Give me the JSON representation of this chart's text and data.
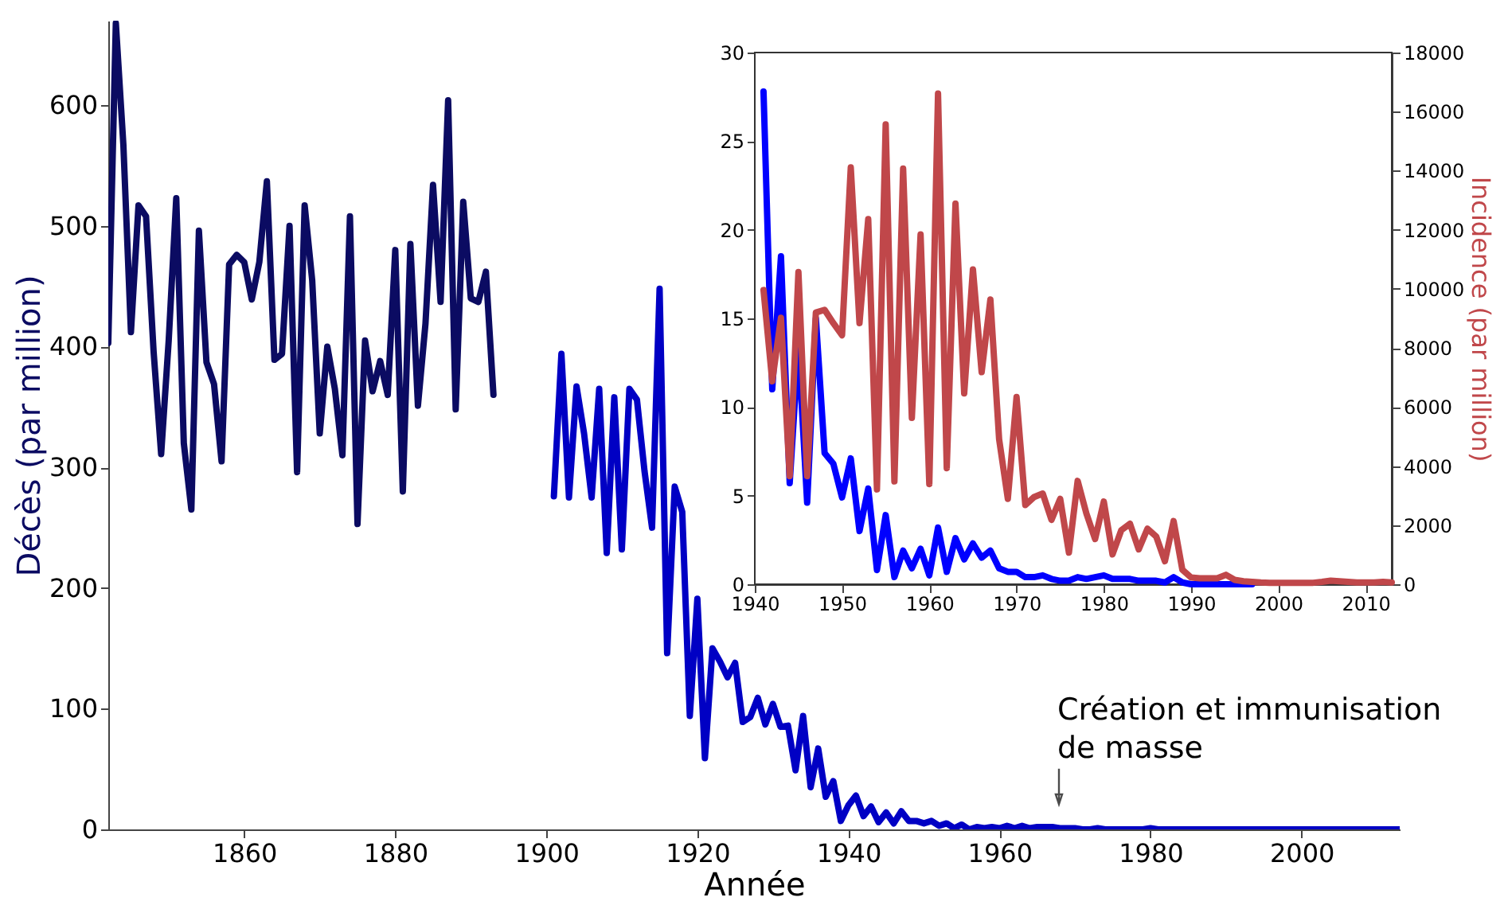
{
  "chart_data": [
    {
      "type": "line",
      "xlabel": "Année",
      "ylabel": "Décès (par million)",
      "xlim": [
        1842,
        2013
      ],
      "xticks": [
        1860,
        1880,
        1900,
        1920,
        1940,
        1960,
        1980,
        2000
      ],
      "ylim": [
        0,
        670
      ],
      "yticks": [
        0,
        100,
        200,
        300,
        400,
        500,
        600
      ],
      "grid": false,
      "annotations": [
        "Création et immunisation\nde masse"
      ],
      "series": [
        {
          "color": "#0b0b62",
          "x": [
            1842,
            1843,
            1844,
            1845,
            1846,
            1847,
            1848,
            1849,
            1850,
            1851,
            1852,
            1853,
            1854,
            1855,
            1856,
            1857,
            1858,
            1859,
            1860,
            1861,
            1862,
            1863,
            1864,
            1865,
            1866,
            1867,
            1868,
            1869,
            1870,
            1871,
            1872,
            1873,
            1874,
            1875,
            1876,
            1877,
            1878,
            1879,
            1880,
            1881,
            1882,
            1883,
            1884,
            1885,
            1886,
            1887,
            1888,
            1889,
            1890,
            1891,
            1892,
            1893
          ],
          "values": [
            403,
            668,
            567,
            412,
            517,
            508,
            396,
            311,
            405,
            523,
            320,
            265,
            496,
            387,
            369,
            305,
            468,
            476,
            470,
            439,
            470,
            537,
            389,
            394,
            500,
            296,
            517,
            455,
            328,
            400,
            365,
            310,
            508,
            253,
            405,
            363,
            388,
            360,
            480,
            280,
            485,
            351,
            419,
            534,
            437,
            604,
            348,
            520,
            440,
            437,
            462,
            360
          ]
        },
        {
          "color": "#0000c4",
          "x": [
            1901,
            1902,
            1903,
            1904,
            1905,
            1906,
            1907,
            1908,
            1909,
            1910,
            1911,
            1912,
            1913,
            1914,
            1915,
            1916,
            1917,
            1918,
            1919,
            1920,
            1921,
            1922,
            1923,
            1924,
            1925,
            1926,
            1927,
            1928,
            1929,
            1930,
            1931,
            1932,
            1933,
            1934,
            1935,
            1936,
            1937,
            1938,
            1939,
            1940,
            1941,
            1942,
            1943,
            1944,
            1945,
            1946,
            1947,
            1948,
            1949,
            1950,
            1951,
            1952,
            1953,
            1954,
            1955,
            1956,
            1957,
            1958,
            1959,
            1960,
            1961,
            1962,
            1963,
            1964,
            1965,
            1966,
            1967,
            1968,
            1969,
            1970,
            1971,
            1972,
            1973,
            1974,
            1975,
            1976,
            1977,
            1978,
            1979,
            1980,
            1981,
            1982,
            1983,
            1984,
            1985,
            1986,
            1987,
            1988,
            1989,
            1990,
            1991,
            1992,
            1993,
            1994,
            1995,
            1996,
            1997,
            1998,
            1999,
            2000,
            2001,
            2002,
            2003,
            2004,
            2005,
            2006,
            2007,
            2008,
            2009,
            2010,
            2011,
            2012,
            2013
          ],
          "values": [
            276,
            394,
            275,
            367,
            328,
            275,
            365,
            229,
            358,
            232,
            365,
            356,
            297,
            250,
            448,
            146,
            284,
            263,
            94,
            191,
            59,
            150,
            139,
            126,
            138,
            89,
            93,
            109,
            87,
            104,
            85,
            86,
            49,
            94,
            35,
            67,
            27,
            40,
            7,
            20,
            28,
            11,
            19,
            6,
            14,
            5,
            15,
            7,
            7,
            5,
            7,
            3,
            5,
            1,
            4,
            0,
            2,
            1,
            2,
            1,
            3,
            1,
            3,
            1,
            2,
            2,
            2,
            1,
            1,
            1,
            0,
            0,
            1,
            0,
            0,
            0,
            0,
            0,
            0,
            1,
            0,
            0,
            0,
            0,
            0,
            0,
            0,
            0,
            0,
            0,
            0,
            0,
            0,
            0,
            0,
            0,
            0,
            0,
            0,
            0,
            0,
            0,
            0,
            0,
            0,
            0,
            0,
            0,
            0,
            0,
            0,
            0,
            0
          ]
        }
      ]
    },
    {
      "type": "line",
      "y2label": "Incidence (par million)",
      "xlim": [
        1940,
        2013
      ],
      "xticks": [
        1940,
        1950,
        1960,
        1970,
        1980,
        1990,
        2000,
        2010
      ],
      "ylim": [
        0,
        30
      ],
      "yticks": [
        0,
        5,
        10,
        15,
        20,
        25,
        30
      ],
      "y2lim": [
        0,
        18000
      ],
      "y2ticks": [
        0,
        2000,
        4000,
        6000,
        8000,
        10000,
        12000,
        14000,
        16000,
        18000
      ],
      "grid": false,
      "series": [
        {
          "color": "#0000ff",
          "x": [
            1941,
            1942,
            1943,
            1944,
            1945,
            1946,
            1947,
            1948,
            1949,
            1950,
            1951,
            1952,
            1953,
            1954,
            1955,
            1956,
            1957,
            1958,
            1959,
            1960,
            1961,
            1962,
            1963,
            1964,
            1965,
            1966,
            1967,
            1968,
            1969,
            1970,
            1971,
            1972,
            1973,
            1974,
            1975,
            1976,
            1977,
            1978,
            1979,
            1980,
            1981,
            1982,
            1983,
            1984,
            1985,
            1986,
            1987,
            1988,
            1989,
            1990,
            1991,
            1992,
            1993,
            1994,
            1995,
            1996,
            1997
          ],
          "values": [
            27.8,
            11.0,
            18.5,
            5.7,
            13.5,
            4.6,
            15.0,
            7.4,
            6.8,
            4.9,
            7.1,
            3.0,
            5.4,
            0.8,
            3.9,
            0.4,
            1.9,
            0.9,
            2.0,
            0.5,
            3.2,
            0.7,
            2.6,
            1.4,
            2.3,
            1.5,
            1.9,
            0.9,
            0.7,
            0.7,
            0.4,
            0.4,
            0.5,
            0.3,
            0.2,
            0.2,
            0.4,
            0.3,
            0.4,
            0.5,
            0.3,
            0.3,
            0.3,
            0.2,
            0.2,
            0.2,
            0.1,
            0.4,
            0.1,
            0,
            0,
            0,
            0,
            0,
            0,
            0,
            0
          ]
        },
        {
          "color": "#c0474a",
          "axis": "y2",
          "x": [
            1941,
            1942,
            1943,
            1944,
            1945,
            1946,
            1947,
            1948,
            1949,
            1950,
            1951,
            1952,
            1953,
            1954,
            1955,
            1956,
            1957,
            1958,
            1959,
            1960,
            1961,
            1962,
            1963,
            1964,
            1965,
            1966,
            1967,
            1968,
            1969,
            1970,
            1971,
            1972,
            1973,
            1974,
            1975,
            1976,
            1977,
            1978,
            1979,
            1980,
            1981,
            1982,
            1983,
            1984,
            1985,
            1986,
            1987,
            1988,
            1989,
            1990,
            1991,
            1992,
            1993,
            1994,
            1995,
            1996,
            1997,
            1998,
            1999,
            2000,
            2001,
            2002,
            2003,
            2004,
            2005,
            2006,
            2007,
            2008,
            2009,
            2010,
            2011,
            2012,
            2013
          ],
          "values": [
            9960,
            6870,
            9020,
            3660,
            10570,
            3660,
            9200,
            9290,
            8840,
            8430,
            14110,
            8840,
            12360,
            3210,
            15570,
            3480,
            14070,
            5630,
            11840,
            3390,
            16610,
            3930,
            12890,
            6460,
            10660,
            7180,
            9640,
            4910,
            2890,
            6340,
            2680,
            2950,
            3070,
            2180,
            2890,
            1070,
            3500,
            2400,
            1530,
            2800,
            1010,
            1830,
            2050,
            1180,
            1880,
            1620,
            780,
            2140,
            490,
            230,
            200,
            200,
            200,
            320,
            150,
            100,
            80,
            60,
            50,
            50,
            50,
            50,
            50,
            50,
            80,
            120,
            100,
            80,
            60,
            60,
            60,
            80,
            60
          ]
        }
      ]
    }
  ]
}
